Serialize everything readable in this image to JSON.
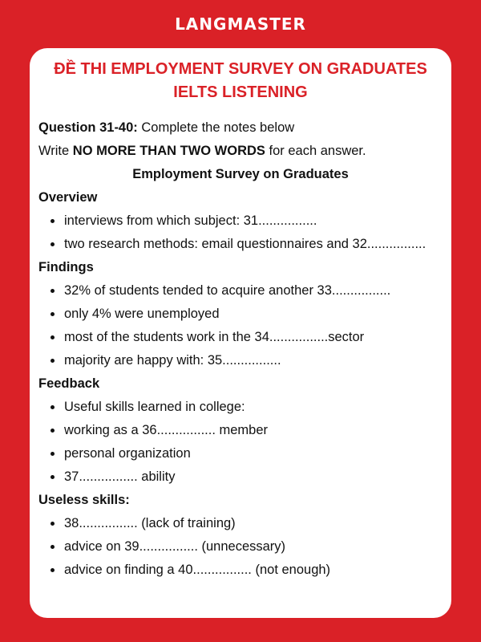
{
  "brand": "LANGMASTER",
  "title": [
    "ĐỀ THI EMPLOYMENT SURVEY ON GRADUATES",
    "IELTS LISTENING"
  ],
  "instructions": {
    "q_label": "Question 31-40:",
    "q_text": " Complete the notes below",
    "write_pre": "Write ",
    "write_bold": "NO MORE THAN TWO WORDS",
    "write_post": " for each answer."
  },
  "subtitle": "Employment Survey on Graduates",
  "sections": [
    {
      "heading": "Overview",
      "items": [
        "interviews from which subject: 31................",
        "two research methods: email questionnaires and 32................"
      ]
    },
    {
      "heading": "Findings",
      "items": [
        "32% of students tended to acquire another 33................",
        "only 4% were unemployed",
        "most of the students work in the 34................sector",
        "majority are happy with: 35................"
      ]
    },
    {
      "heading": "Feedback",
      "items": [
        "Useful skills learned in college:",
        "working as a 36................ member",
        "personal organization",
        "37................ ability"
      ]
    },
    {
      "heading": "Useless skills:",
      "items": [
        "38................ (lack of training)",
        "advice on 39................ (unnecessary)",
        "advice on finding a 40................ (not enough)"
      ]
    }
  ]
}
